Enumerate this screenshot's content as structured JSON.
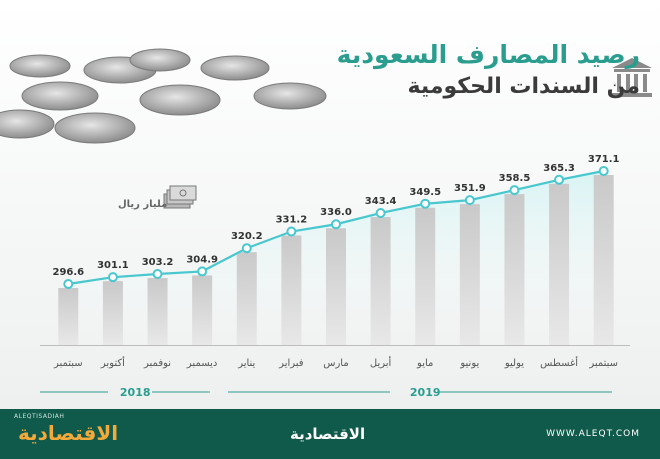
{
  "title": {
    "line1": "رصيد المصارف السعودية",
    "line2": "من السندات الحكومية"
  },
  "unit": "مليار ريال",
  "footer": {
    "brand_left": "الاقتصادية",
    "handle": "ALEQTISADIAH",
    "brand_mid": "الاقتصادية",
    "url": "WWW.ALEQT.COM"
  },
  "colors": {
    "accent": "#2a9d8f",
    "line": "#49c7cf",
    "bar": "#d2d2d2",
    "footer": "#0f5a4a"
  },
  "icons": [
    "bank-building-icon",
    "money-stack-icon",
    "coins-image"
  ],
  "chart_data": {
    "type": "bar",
    "title": "رصيد المصارف السعودية من السندات الحكومية",
    "ylabel": "مليار ريال",
    "categories": [
      "سبتمبر",
      "أكتوبر",
      "نوفمبر",
      "ديسمبر",
      "يناير",
      "فبراير",
      "مارس",
      "أبريل",
      "مايو",
      "يونيو",
      "يوليو",
      "أغسطس",
      "سبتمبر"
    ],
    "values": [
      296.6,
      301.1,
      303.2,
      304.9,
      320.2,
      331.2,
      336.0,
      343.4,
      349.5,
      351.9,
      358.5,
      365.3,
      371.1
    ],
    "value_labels": [
      "296.6",
      "301.1",
      "303.2",
      "304.9",
      "320.2",
      "331.2",
      "336.0",
      "343.4",
      "349.5",
      "351.9",
      "358.5",
      "365.3",
      "371.1"
    ],
    "year_groups": [
      {
        "label": "2018",
        "from": 0,
        "to": 3
      },
      {
        "label": "2019",
        "from": 4,
        "to": 12
      }
    ],
    "overlay": "line",
    "grid": false,
    "legend": "none"
  }
}
